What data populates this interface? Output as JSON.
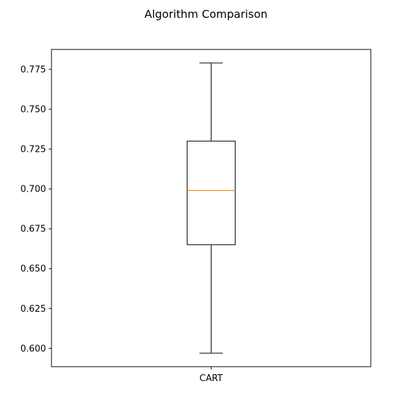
{
  "chart_data": {
    "type": "boxplot",
    "title": "Algorithm Comparison",
    "xlabel": "",
    "ylabel": "",
    "categories": [
      "CART"
    ],
    "boxes": [
      {
        "label": "CART",
        "whisker_low": 0.597,
        "q1": 0.665,
        "median": 0.699,
        "q3": 0.73,
        "whisker_high": 0.779
      }
    ],
    "y_ticks": [
      0.6,
      0.625,
      0.65,
      0.675,
      0.7,
      0.725,
      0.75,
      0.775
    ],
    "ylim": [
      0.5885,
      0.7875
    ],
    "grid": false,
    "colors": {
      "box": "#000000",
      "median": "#ff7f0e",
      "background": "#ffffff"
    }
  }
}
